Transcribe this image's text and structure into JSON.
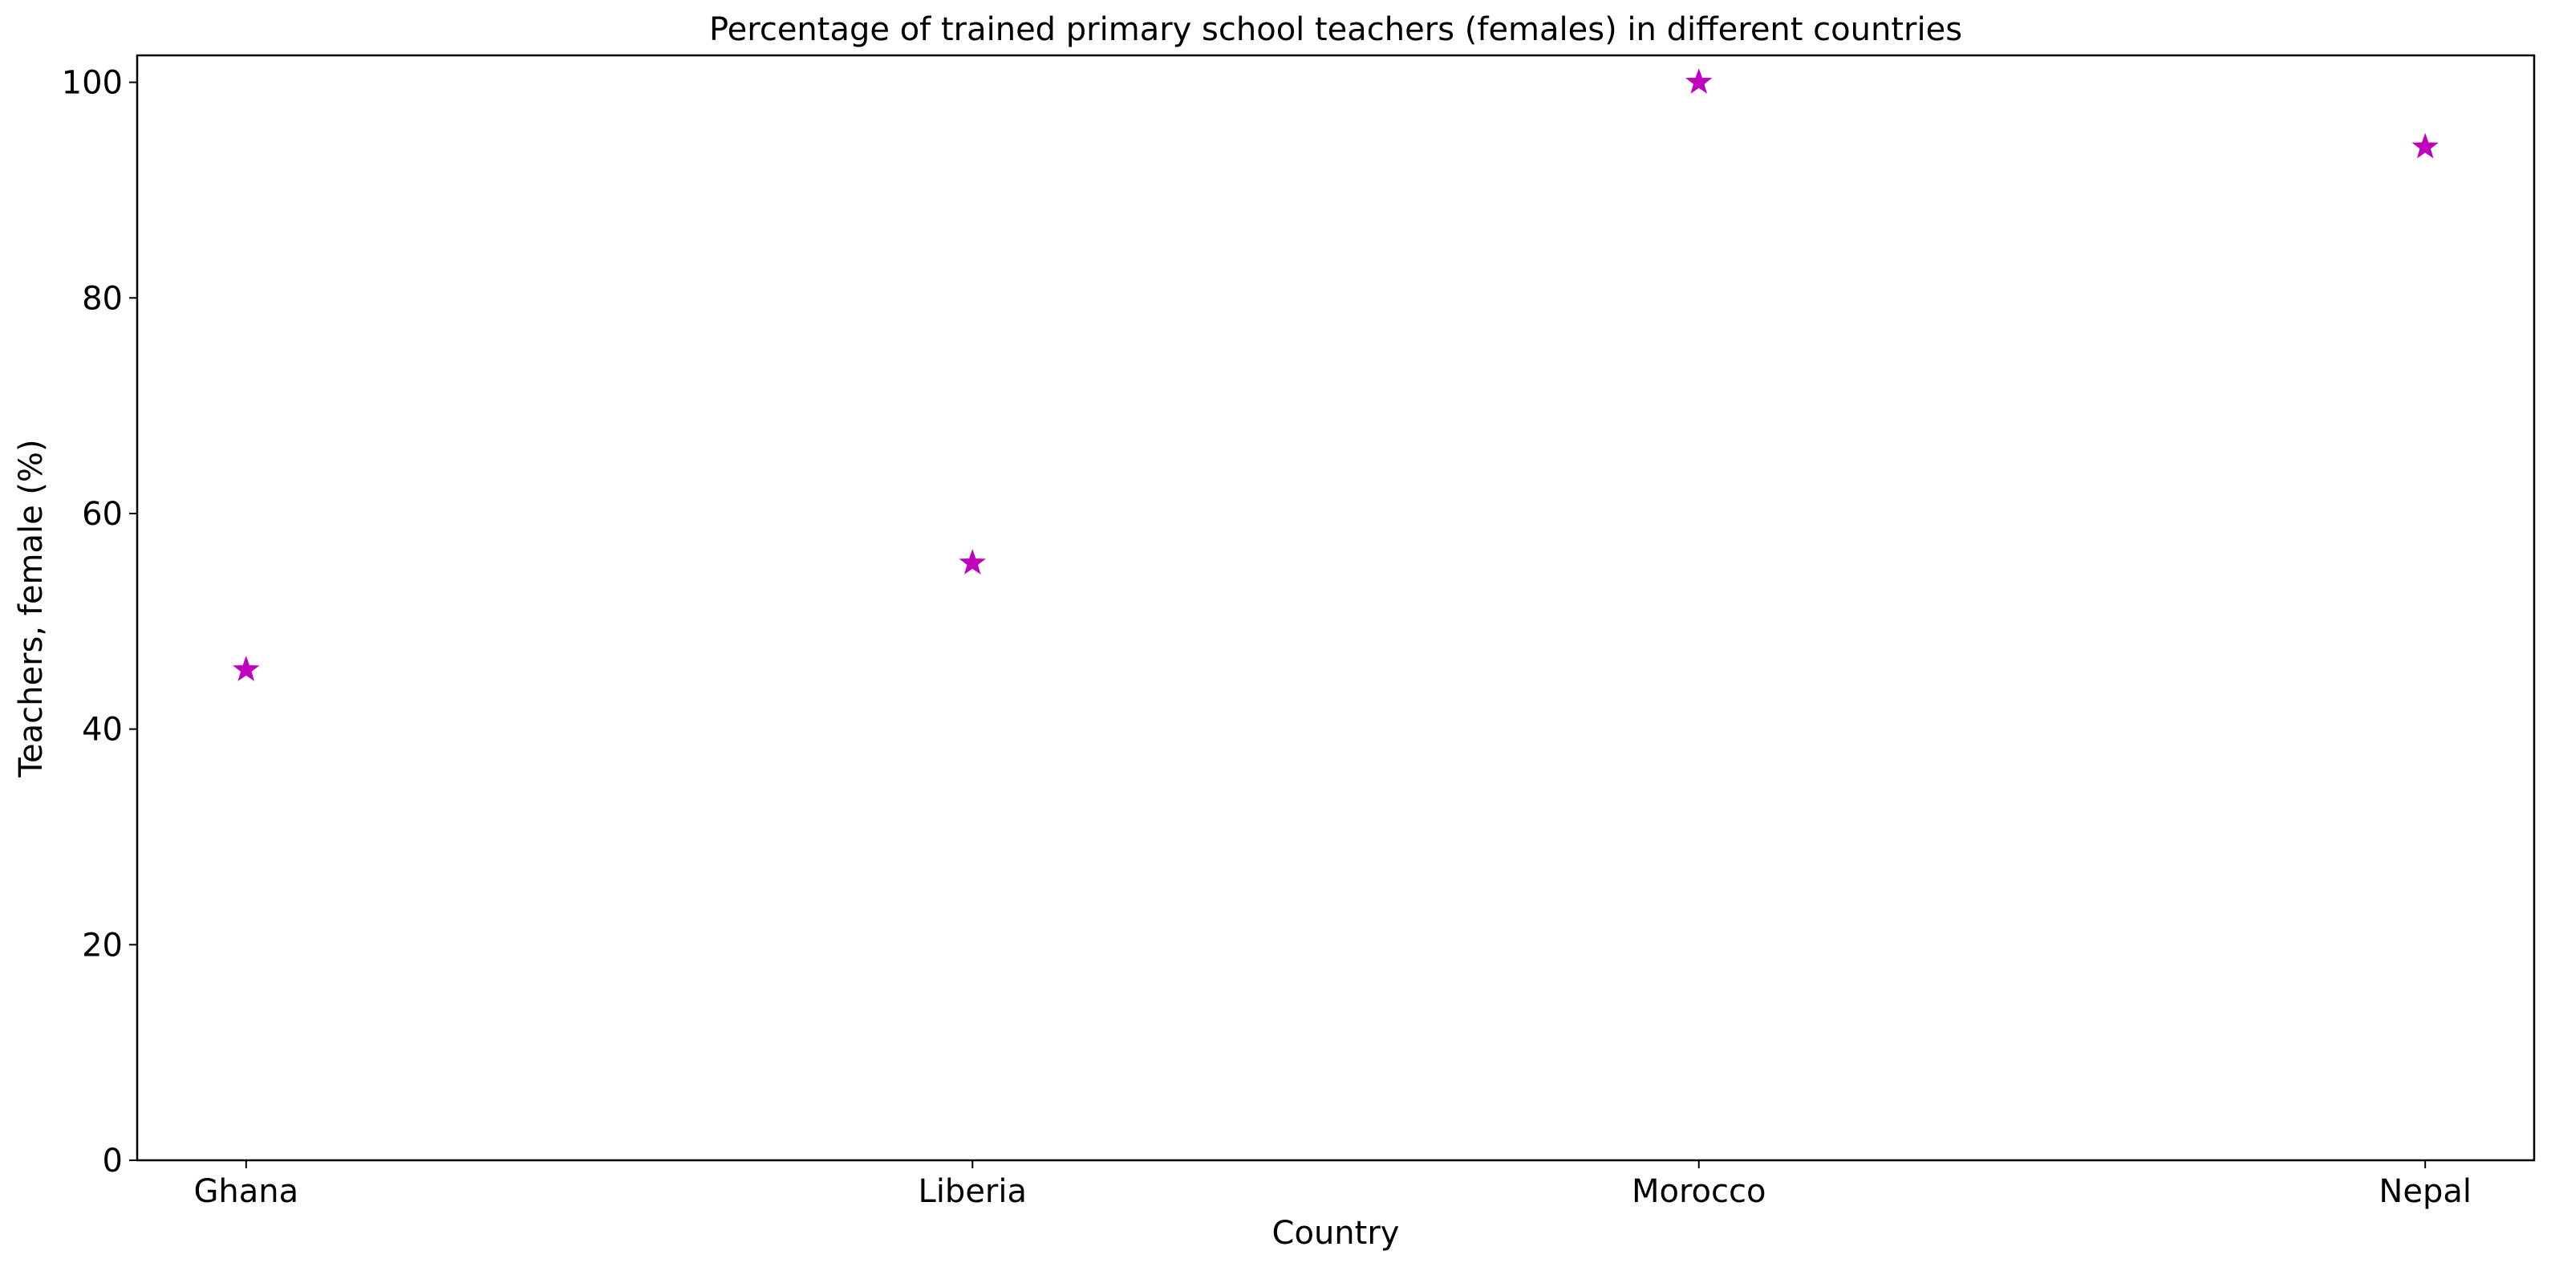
{
  "chart_data": {
    "type": "scatter",
    "title": "Percentage of trained primary school teachers (females) in different countries",
    "xlabel": "Country",
    "ylabel": "Teachers, female (%)",
    "categories": [
      "Ghana",
      "Liberia",
      "Morocco",
      "Nepal"
    ],
    "values": [
      45.5,
      55.4,
      100.0,
      94.0
    ],
    "ylim": [
      0,
      102.5
    ],
    "yticks": [
      0,
      20,
      40,
      60,
      80,
      100
    ],
    "marker": "star",
    "marker_color": "#bf00bf",
    "grid": false,
    "legend": "none"
  }
}
